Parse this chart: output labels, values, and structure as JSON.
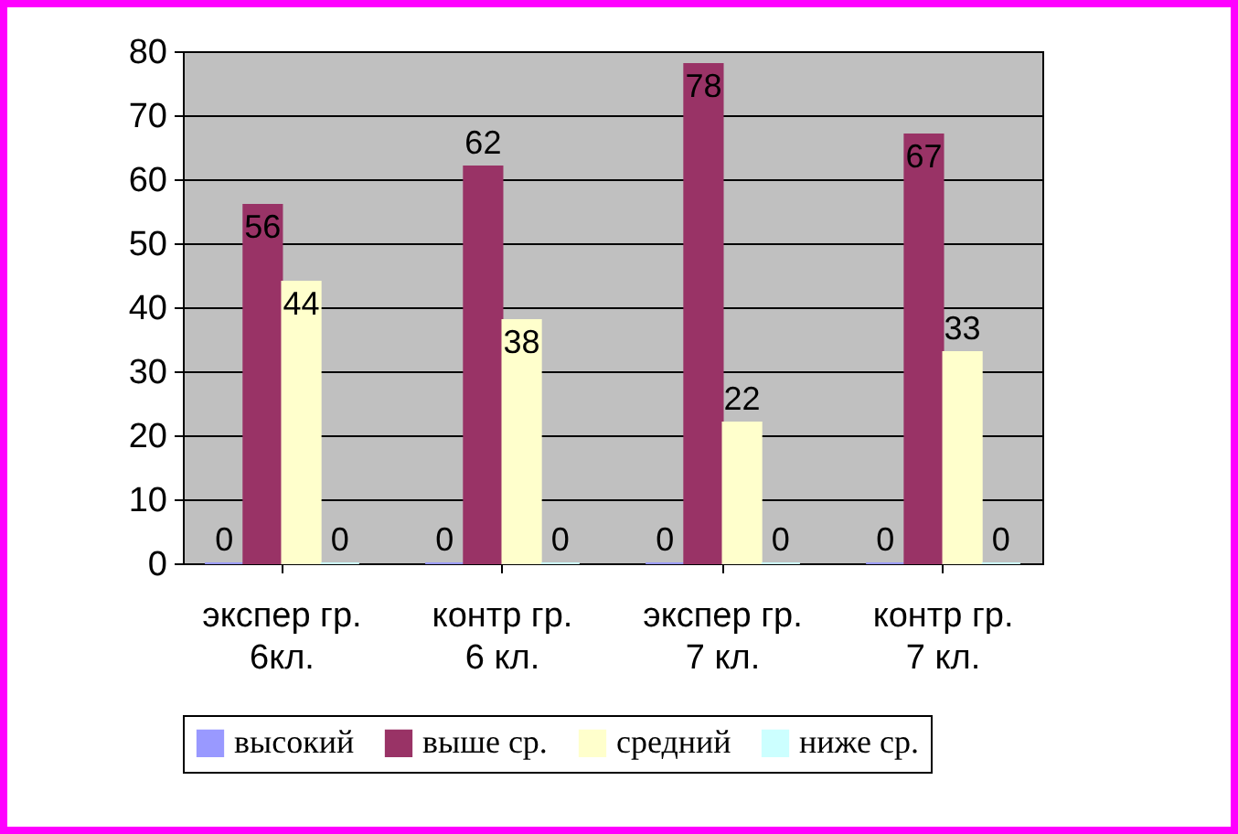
{
  "chart_data": {
    "type": "bar",
    "categories": [
      "экспер гр. 6кл.",
      "контр гр. 6 кл.",
      "экспер гр. 7 кл.",
      "контр гр. 7 кл."
    ],
    "series": [
      {
        "name": "высокий",
        "color": "#9999ff",
        "values": [
          0,
          0,
          0,
          0
        ]
      },
      {
        "name": "выше ср.",
        "color": "#993366",
        "values": [
          56,
          62,
          78,
          67
        ]
      },
      {
        "name": "средний",
        "color": "#ffffcc",
        "values": [
          44,
          38,
          22,
          33
        ]
      },
      {
        "name": "ниже ср.",
        "color": "#ccffff",
        "values": [
          0,
          0,
          0,
          0
        ]
      }
    ],
    "ylim": [
      0,
      80
    ],
    "yticks": [
      0,
      10,
      20,
      30,
      40,
      50,
      60,
      70,
      80
    ],
    "grid": "y",
    "legend": "bottom",
    "data_labels": true
  }
}
